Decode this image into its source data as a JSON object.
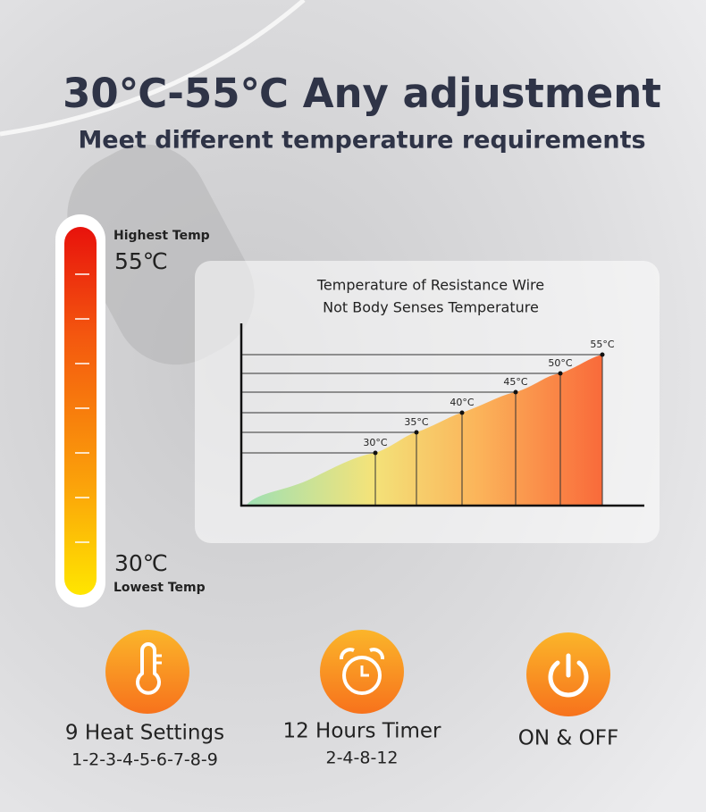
{
  "header": {
    "title": "30℃-55℃ Any adjustment",
    "subtitle": "Meet different temperature requirements"
  },
  "thermometer": {
    "high_label": "Highest Temp",
    "high_value": "55℃",
    "low_value": "30℃",
    "low_label": "Lowest Temp"
  },
  "chart": {
    "title_lines": [
      "Temperature of Resistance Wire",
      "Not Body Senses Temperature"
    ],
    "point_labels": [
      "30°C",
      "35°C",
      "40°C",
      "45°C",
      "50°C",
      "55°C"
    ]
  },
  "features": [
    {
      "title": "9 Heat Settings",
      "detail": "1-2-3-4-5-6-7-8-9"
    },
    {
      "title": "12 Hours Timer",
      "detail": "2-4-8-12"
    },
    {
      "title": "ON & OFF"
    }
  ]
}
